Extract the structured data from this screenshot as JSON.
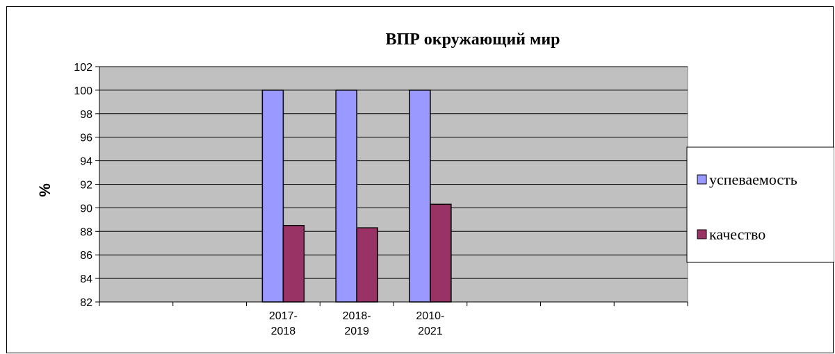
{
  "chart_data": {
    "type": "bar",
    "title": "ВПР окружающий мир",
    "xlabel": "",
    "ylabel": "%",
    "ylim": [
      82,
      102
    ],
    "yticks": [
      82,
      84,
      86,
      88,
      90,
      92,
      94,
      96,
      98,
      100,
      102
    ],
    "grid": true,
    "legend_position": "right",
    "category_slots": 8,
    "categories": [
      {
        "slot": 2,
        "line1": "2017-",
        "line2": "2018"
      },
      {
        "slot": 3,
        "line1": "2018-",
        "line2": "2019"
      },
      {
        "slot": 4,
        "line1": "2010-",
        "line2": "2021"
      }
    ],
    "series": [
      {
        "name": "успеваемость",
        "color": "#9999FF",
        "values": [
          100,
          100,
          100
        ]
      },
      {
        "name": "качество",
        "color": "#993366",
        "values": [
          88.5,
          88.3,
          90.3
        ]
      }
    ],
    "plot_background": "#C0C0C0"
  }
}
